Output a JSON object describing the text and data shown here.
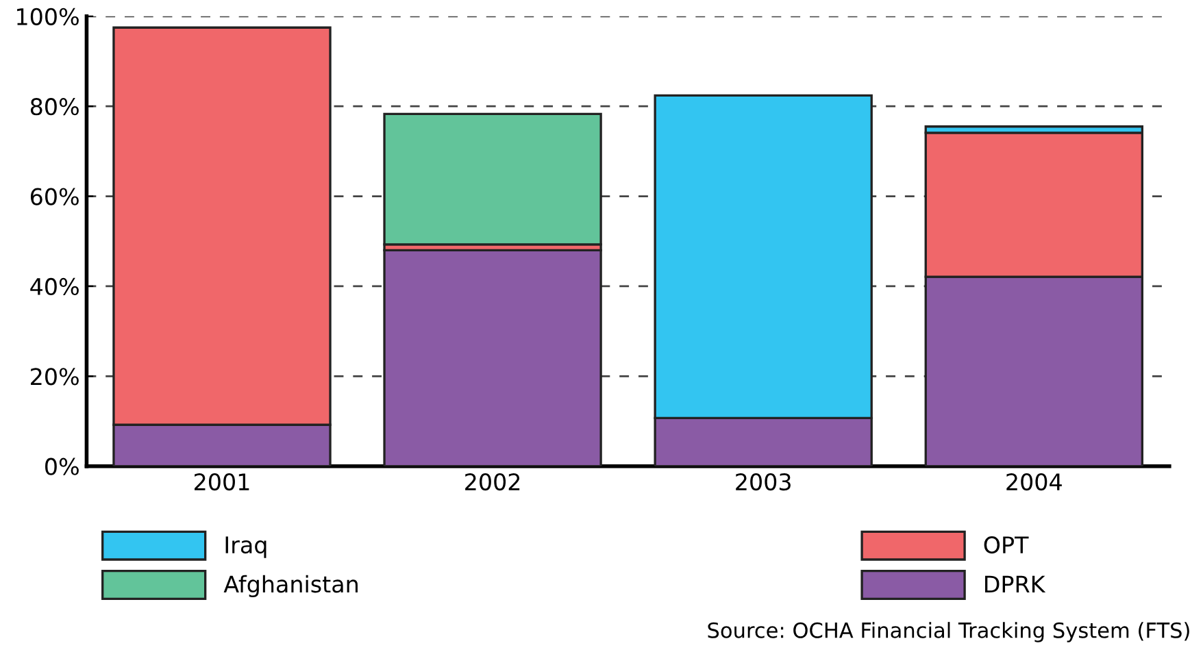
{
  "chart_data": {
    "type": "bar",
    "stacked": true,
    "categories": [
      "2001",
      "2002",
      "2003",
      "2004"
    ],
    "series": [
      {
        "name": "DPRK",
        "color": "#8a5ba5",
        "values": [
          9.2,
          48.0,
          10.7,
          42.1
        ]
      },
      {
        "name": "OPT",
        "color": "#f0676a",
        "values": [
          88.3,
          1.3,
          null,
          32.0
        ]
      },
      {
        "name": "Afghanistan",
        "color": "#62c49a",
        "values": [
          null,
          29.0,
          null,
          null
        ]
      },
      {
        "name": "Iraq",
        "color": "#33c5f1",
        "values": [
          null,
          null,
          71.7,
          1.4
        ]
      }
    ],
    "ylim": [
      0,
      100
    ],
    "yticks": [
      {
        "value": 0,
        "label": "0%"
      },
      {
        "value": 20,
        "label": "20%"
      },
      {
        "value": 40,
        "label": "40%"
      },
      {
        "value": 60,
        "label": "60%"
      },
      {
        "value": 80,
        "label": "80%"
      },
      {
        "value": 100,
        "label": "100%"
      }
    ],
    "grid": "y",
    "legend": "bottom",
    "annotations": [
      "Source: OCHA Financial Tracking System (FTS)"
    ]
  }
}
